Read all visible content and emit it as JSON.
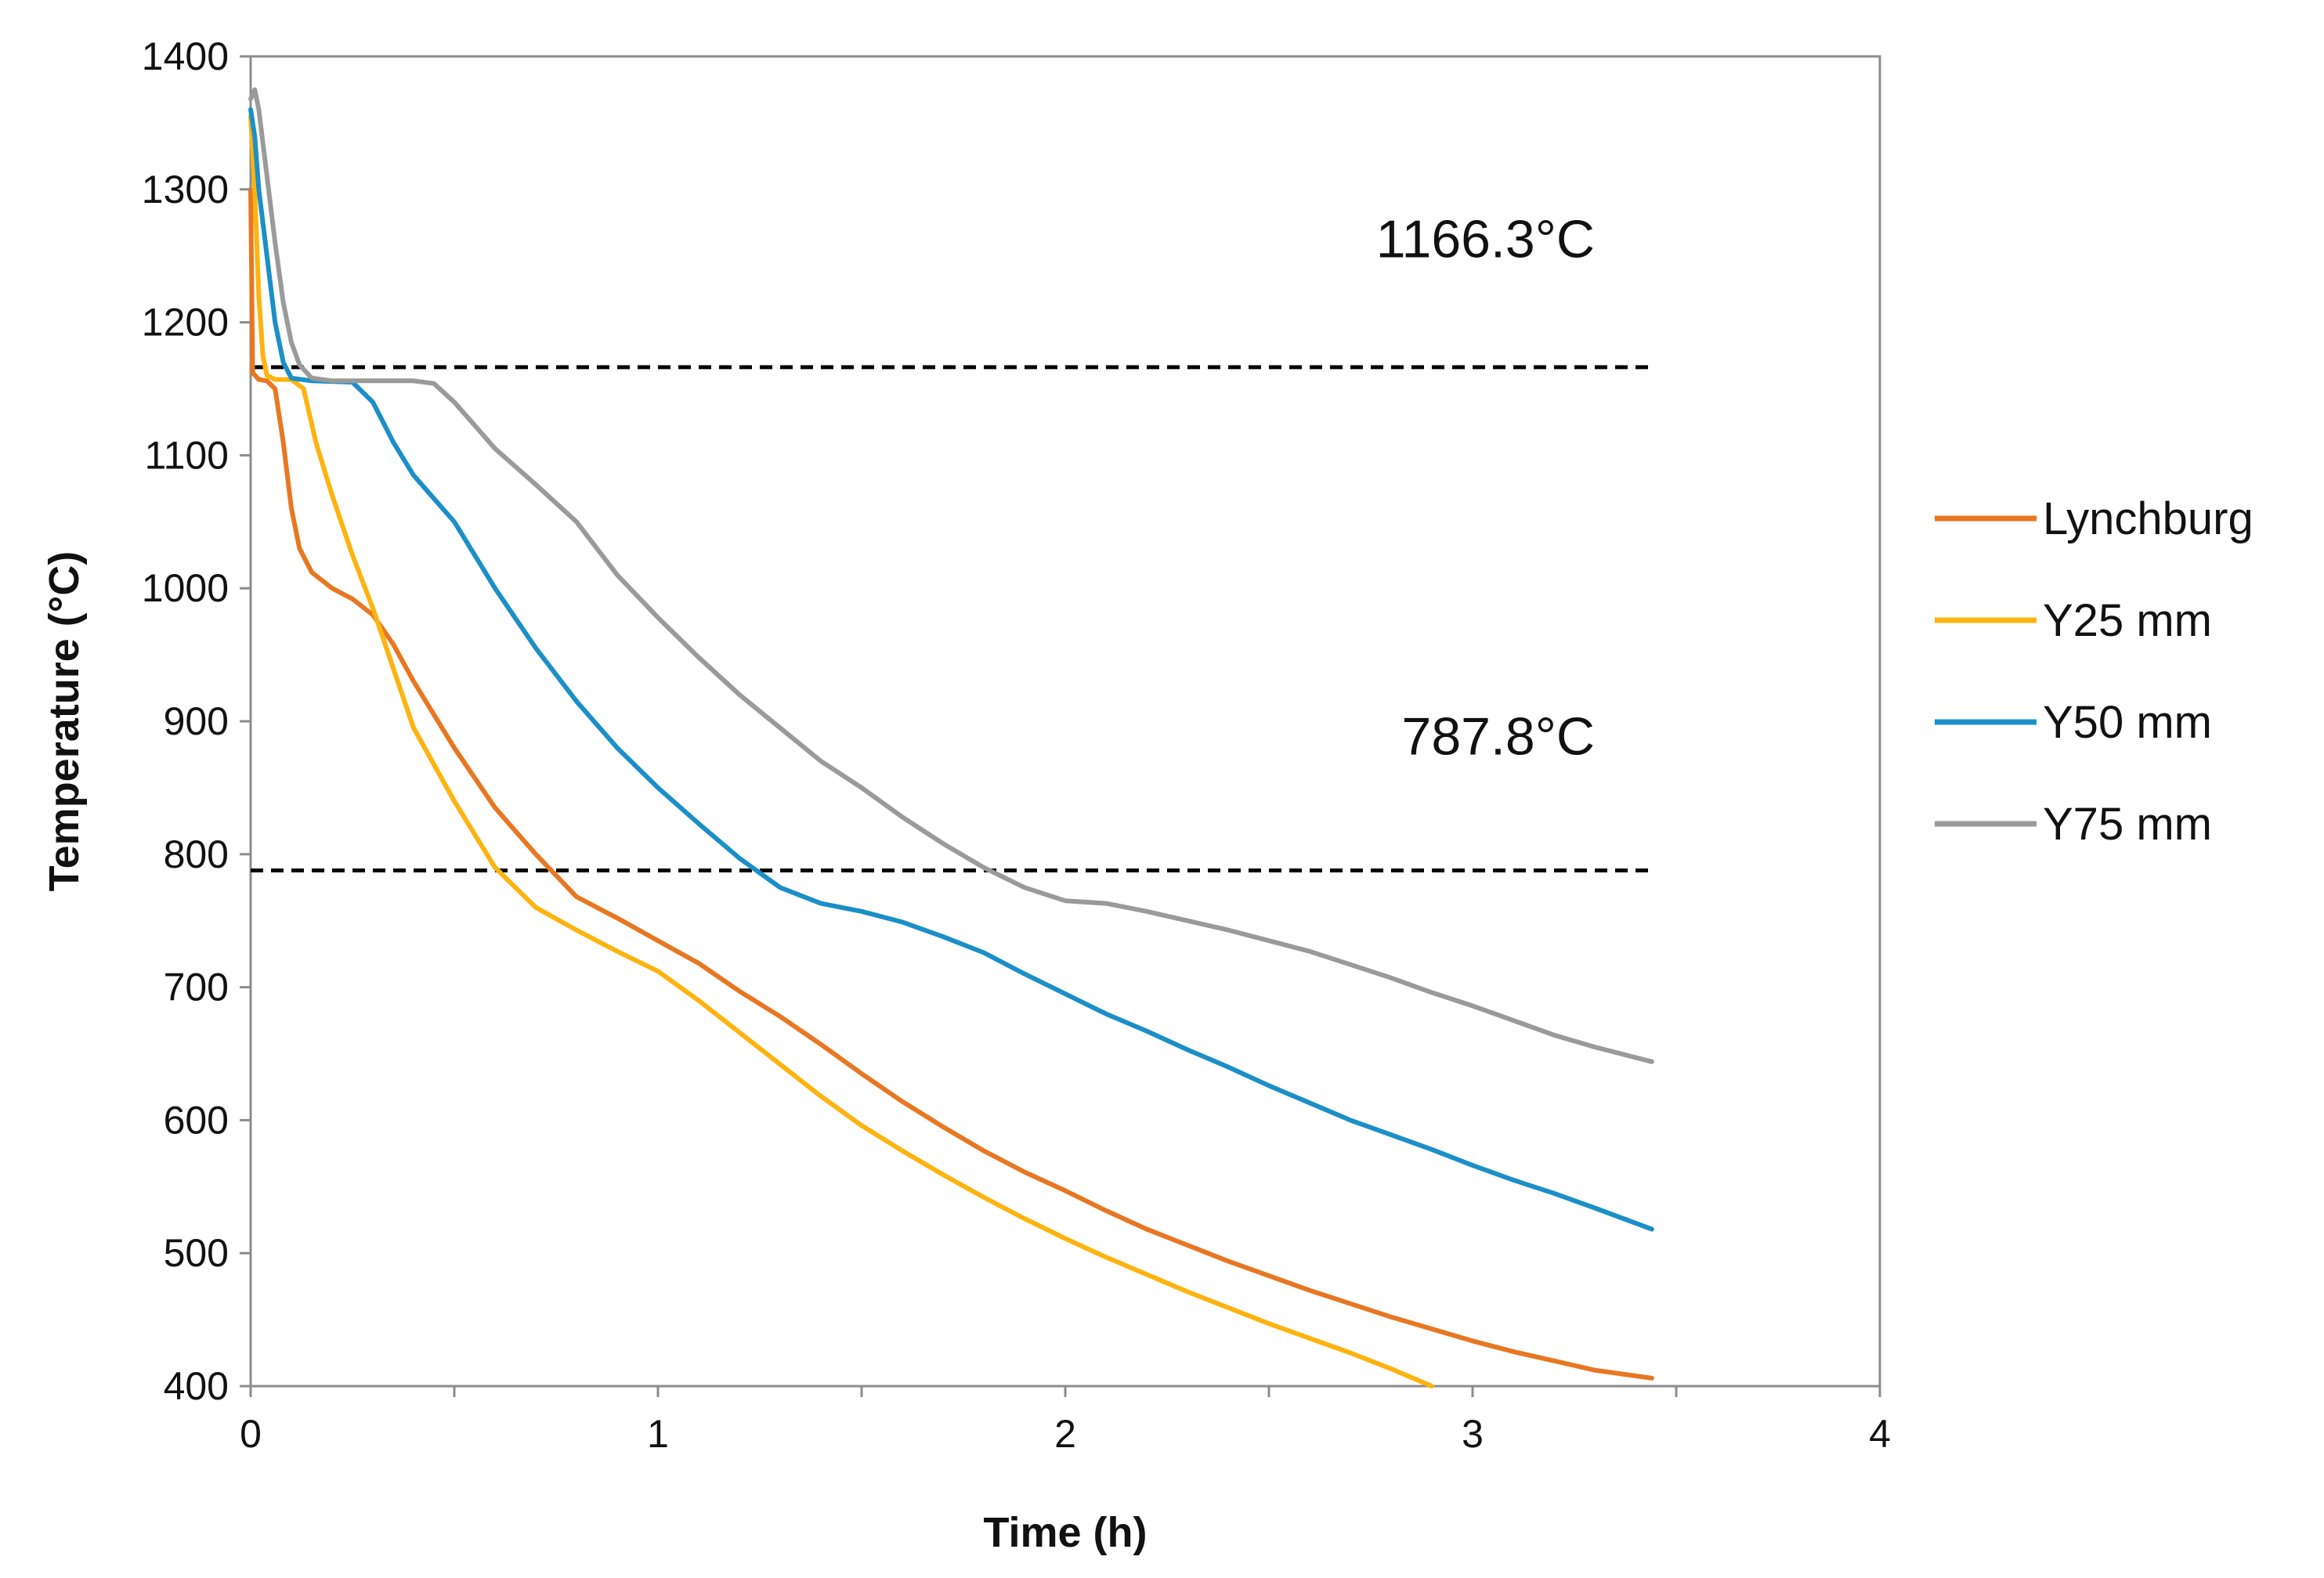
{
  "chart_data": {
    "type": "line",
    "title": "",
    "xlabel": "Time (h)",
    "ylabel": "Temperature (°C)",
    "xlim": [
      0,
      4
    ],
    "ylim": [
      400,
      1400
    ],
    "x_ticks": [
      0,
      1,
      2,
      3,
      4
    ],
    "y_ticks": [
      400,
      500,
      600,
      700,
      800,
      900,
      1000,
      1100,
      1200,
      1300,
      1400
    ],
    "grid": false,
    "legend_position": "right",
    "reference_lines": [
      {
        "y": 1166.3,
        "x_range": [
          0,
          3.44
        ],
        "style": "dashed",
        "color": "#000000",
        "label": "1166.3°C",
        "label_x": 3.3,
        "label_y": 1249
      },
      {
        "y": 787.8,
        "x_range": [
          0,
          3.44
        ],
        "style": "dashed",
        "color": "#000000",
        "label": "787.8°C",
        "label_x": 3.3,
        "label_y": 875
      }
    ],
    "series": [
      {
        "name": "Lynchburg",
        "color": "#E87722",
        "points": [
          [
            0,
            1300
          ],
          [
            0.005,
            1162
          ],
          [
            0.02,
            1157
          ],
          [
            0.04,
            1156
          ],
          [
            0.06,
            1150
          ],
          [
            0.08,
            1110
          ],
          [
            0.1,
            1060
          ],
          [
            0.12,
            1030
          ],
          [
            0.15,
            1012
          ],
          [
            0.2,
            1000
          ],
          [
            0.25,
            992
          ],
          [
            0.3,
            980
          ],
          [
            0.35,
            958
          ],
          [
            0.4,
            930
          ],
          [
            0.5,
            880
          ],
          [
            0.6,
            835
          ],
          [
            0.7,
            800
          ],
          [
            0.8,
            768
          ],
          [
            0.9,
            752
          ],
          [
            1.0,
            735
          ],
          [
            1.1,
            718
          ],
          [
            1.2,
            697
          ],
          [
            1.3,
            678
          ],
          [
            1.4,
            657
          ],
          [
            1.5,
            635
          ],
          [
            1.6,
            614
          ],
          [
            1.7,
            595
          ],
          [
            1.8,
            577
          ],
          [
            1.9,
            561
          ],
          [
            2.0,
            547
          ],
          [
            2.1,
            532
          ],
          [
            2.2,
            518
          ],
          [
            2.3,
            506
          ],
          [
            2.4,
            494
          ],
          [
            2.5,
            483
          ],
          [
            2.6,
            472
          ],
          [
            2.7,
            462
          ],
          [
            2.8,
            452
          ],
          [
            2.9,
            443
          ],
          [
            3.0,
            434
          ],
          [
            3.1,
            426
          ],
          [
            3.2,
            419
          ],
          [
            3.3,
            412
          ],
          [
            3.44,
            406
          ]
        ]
      },
      {
        "name": "Y25 mm",
        "color": "#FFB30F",
        "points": [
          [
            0,
            1355
          ],
          [
            0.01,
            1300
          ],
          [
            0.02,
            1220
          ],
          [
            0.03,
            1175
          ],
          [
            0.04,
            1160
          ],
          [
            0.06,
            1157
          ],
          [
            0.1,
            1157
          ],
          [
            0.13,
            1150
          ],
          [
            0.16,
            1110
          ],
          [
            0.2,
            1070
          ],
          [
            0.25,
            1025
          ],
          [
            0.3,
            985
          ],
          [
            0.35,
            940
          ],
          [
            0.4,
            895
          ],
          [
            0.5,
            840
          ],
          [
            0.6,
            790
          ],
          [
            0.7,
            760
          ],
          [
            0.8,
            743
          ],
          [
            0.9,
            727
          ],
          [
            1.0,
            712
          ],
          [
            1.1,
            690
          ],
          [
            1.2,
            666
          ],
          [
            1.3,
            642
          ],
          [
            1.4,
            618
          ],
          [
            1.5,
            596
          ],
          [
            1.6,
            577
          ],
          [
            1.7,
            559
          ],
          [
            1.8,
            542
          ],
          [
            1.9,
            526
          ],
          [
            2.0,
            511
          ],
          [
            2.1,
            497
          ],
          [
            2.2,
            484
          ],
          [
            2.3,
            471
          ],
          [
            2.4,
            459
          ],
          [
            2.5,
            447
          ],
          [
            2.6,
            436
          ],
          [
            2.7,
            425
          ],
          [
            2.8,
            413
          ],
          [
            2.9,
            400
          ]
        ]
      },
      {
        "name": "Y50 mm",
        "color": "#1B8FC7",
        "points": [
          [
            0,
            1360
          ],
          [
            0.01,
            1340
          ],
          [
            0.02,
            1300
          ],
          [
            0.04,
            1250
          ],
          [
            0.06,
            1200
          ],
          [
            0.08,
            1170
          ],
          [
            0.1,
            1158
          ],
          [
            0.15,
            1156
          ],
          [
            0.25,
            1155
          ],
          [
            0.3,
            1140
          ],
          [
            0.35,
            1110
          ],
          [
            0.4,
            1085
          ],
          [
            0.5,
            1050
          ],
          [
            0.6,
            1000
          ],
          [
            0.7,
            955
          ],
          [
            0.8,
            915
          ],
          [
            0.9,
            880
          ],
          [
            1.0,
            850
          ],
          [
            1.1,
            823
          ],
          [
            1.2,
            797
          ],
          [
            1.3,
            775
          ],
          [
            1.4,
            763
          ],
          [
            1.5,
            757
          ],
          [
            1.6,
            749
          ],
          [
            1.7,
            738
          ],
          [
            1.8,
            726
          ],
          [
            1.9,
            710
          ],
          [
            2.0,
            695
          ],
          [
            2.1,
            680
          ],
          [
            2.2,
            667
          ],
          [
            2.3,
            653
          ],
          [
            2.4,
            640
          ],
          [
            2.5,
            626
          ],
          [
            2.6,
            613
          ],
          [
            2.7,
            600
          ],
          [
            2.8,
            589
          ],
          [
            2.9,
            578
          ],
          [
            3.0,
            566
          ],
          [
            3.1,
            555
          ],
          [
            3.2,
            545
          ],
          [
            3.3,
            534
          ],
          [
            3.44,
            518
          ]
        ]
      },
      {
        "name": "Y75 mm",
        "color": "#9A9A9A",
        "points": [
          [
            0,
            1368
          ],
          [
            0.01,
            1375
          ],
          [
            0.02,
            1360
          ],
          [
            0.04,
            1310
          ],
          [
            0.06,
            1260
          ],
          [
            0.08,
            1215
          ],
          [
            0.1,
            1185
          ],
          [
            0.12,
            1168
          ],
          [
            0.15,
            1158
          ],
          [
            0.2,
            1156
          ],
          [
            0.3,
            1156
          ],
          [
            0.4,
            1156
          ],
          [
            0.45,
            1154
          ],
          [
            0.5,
            1140
          ],
          [
            0.6,
            1105
          ],
          [
            0.7,
            1078
          ],
          [
            0.8,
            1050
          ],
          [
            0.9,
            1010
          ],
          [
            1.0,
            978
          ],
          [
            1.1,
            948
          ],
          [
            1.2,
            920
          ],
          [
            1.3,
            895
          ],
          [
            1.4,
            870
          ],
          [
            1.5,
            850
          ],
          [
            1.6,
            828
          ],
          [
            1.7,
            808
          ],
          [
            1.8,
            790
          ],
          [
            1.9,
            775
          ],
          [
            2.0,
            765
          ],
          [
            2.1,
            763
          ],
          [
            2.2,
            757
          ],
          [
            2.3,
            750
          ],
          [
            2.4,
            743
          ],
          [
            2.5,
            735
          ],
          [
            2.6,
            727
          ],
          [
            2.7,
            717
          ],
          [
            2.8,
            707
          ],
          [
            2.9,
            696
          ],
          [
            3.0,
            686
          ],
          [
            3.1,
            675
          ],
          [
            3.2,
            664
          ],
          [
            3.3,
            655
          ],
          [
            3.44,
            644
          ]
        ]
      }
    ]
  }
}
